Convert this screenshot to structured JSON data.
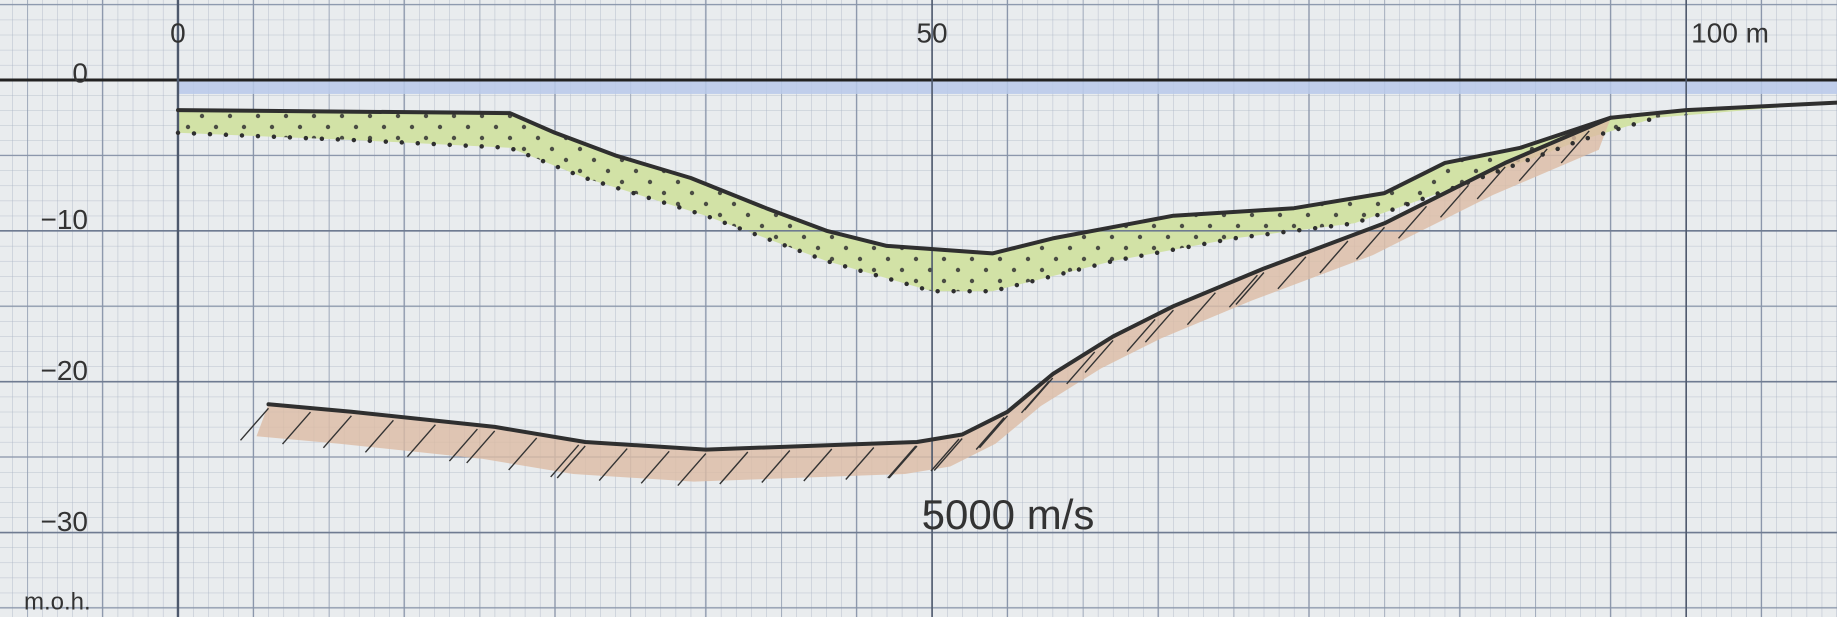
{
  "chart_data": {
    "type": "line",
    "xlim": [
      -11.8,
      110
    ],
    "ylim": [
      -35.6,
      5.3
    ],
    "xticks": [
      0,
      50,
      {
        "value": 100,
        "label": "100 m"
      }
    ],
    "yticks": [
      0,
      {
        "value": -10,
        "label": "−10"
      },
      {
        "value": -20,
        "label": "−20"
      },
      {
        "value": -30,
        "label": "−30"
      }
    ],
    "ylabel": "m.o.h.",
    "annotation": "5000 m/s",
    "water_color": "#b9c9ea",
    "series": [
      {
        "color": "#2f2f2f",
        "style": "solid",
        "fill": "#d2e2a6",
        "x": [
          0,
          22,
          25,
          29,
          34,
          39,
          43,
          47,
          54,
          58,
          66,
          74,
          80,
          84,
          89,
          95,
          100,
          110
        ],
        "values": [
          -2,
          -2.2,
          -3.5,
          -5,
          -6.5,
          -8.5,
          -10,
          -11,
          -11.5,
          -10.5,
          -9,
          -8.5,
          -7.5,
          -5.5,
          -4.5,
          -2.5,
          -2,
          -1.5
        ]
      },
      {
        "color": "#2f2f2f",
        "style": "dotted",
        "x": [
          0,
          12,
          22,
          27,
          35,
          43,
          50,
          54,
          62,
          70,
          78,
          85,
          93,
          98
        ],
        "values": [
          -3.5,
          -4,
          -4.5,
          -6.5,
          -9,
          -12,
          -14,
          -14,
          -12,
          -10.5,
          -9.5,
          -7,
          -4,
          -2.5
        ]
      },
      {
        "color": "#2f2f2f",
        "style": "hatched",
        "fill": "#dcbba4",
        "x": [
          6,
          11.5,
          21,
          27,
          35,
          49,
          52,
          55,
          58,
          62,
          66,
          72,
          80,
          88,
          95
        ],
        "values": [
          -21.5,
          -22,
          -23,
          -24,
          -24.5,
          -24,
          -23.5,
          -22,
          -19.5,
          -17,
          -15,
          -12.5,
          -9.5,
          -5.5,
          -2.5
        ]
      }
    ]
  }
}
